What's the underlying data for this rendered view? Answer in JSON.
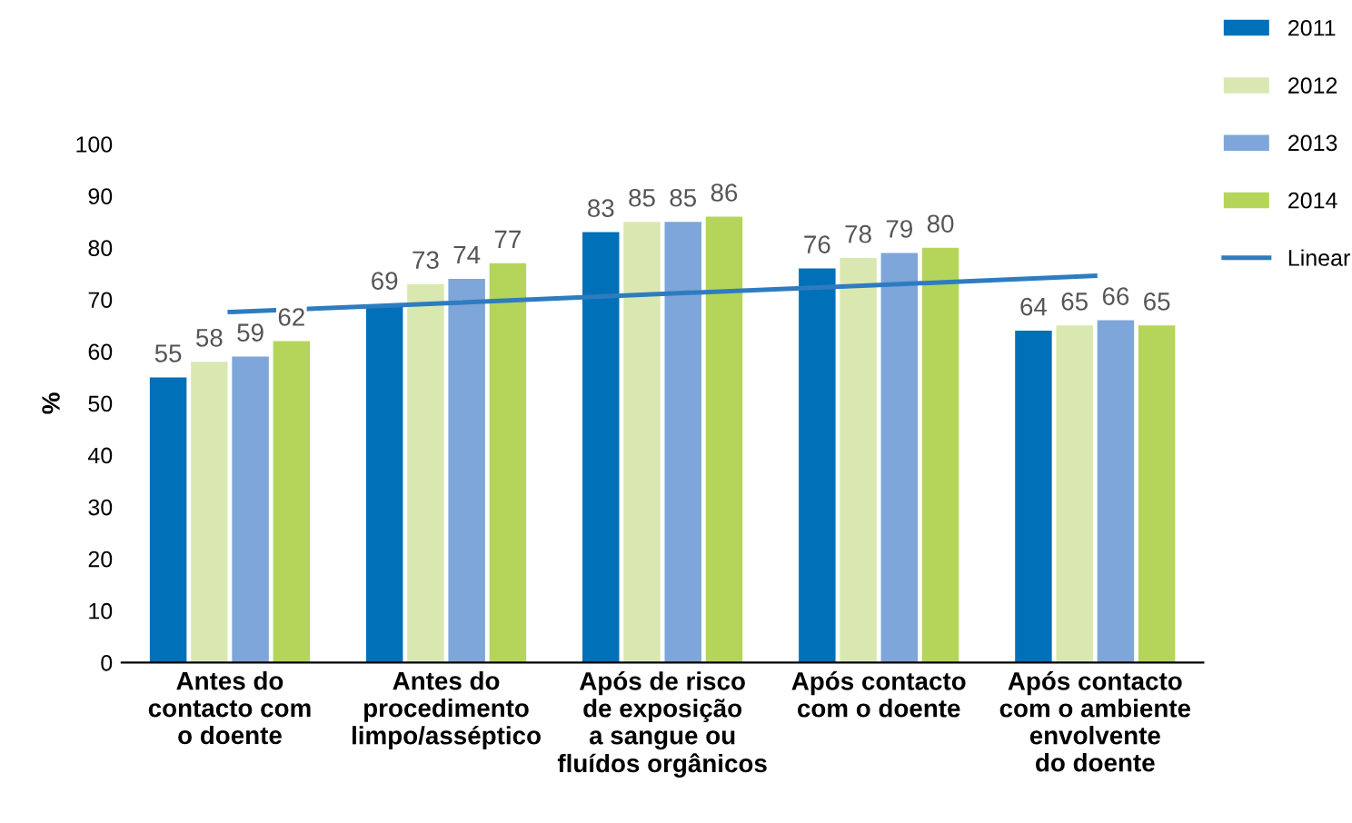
{
  "chart_data": {
    "type": "bar",
    "ylabel": "%",
    "categories": [
      "Antes do\ncontacto com\no doente",
      "Antes do\nprocedimento\nlimpo/asséptico",
      "Após de risco\nde exposição\na sangue ou\nfluídos orgânicos",
      "Após contacto\ncom o doente",
      "Após contacto\ncom o ambiente\nenvolvente\ndo doente"
    ],
    "series": [
      {
        "name": "2011",
        "color": "#0070b8",
        "values": [
          55,
          69,
          83,
          76,
          64
        ],
        "value_labels": [
          "55",
          "69",
          "83",
          "76",
          "64"
        ]
      },
      {
        "name": "2012",
        "color": "#d9e8b0",
        "values": [
          58,
          73,
          85,
          78,
          65
        ],
        "value_labels": [
          "58",
          "73",
          "85",
          "78",
          "65"
        ]
      },
      {
        "name": "2013",
        "color": "#7ea6d8",
        "values": [
          59,
          74,
          85,
          79,
          66
        ],
        "value_labels": [
          "59",
          "74",
          "85",
          "79",
          "66"
        ]
      },
      {
        "name": "2014",
        "color": "#b5d55a",
        "values": [
          62,
          77,
          86,
          80,
          65
        ],
        "value_labels": [
          "62",
          "77",
          "86",
          "80",
          "65"
        ]
      },
      {
        "name": "Linear",
        "type": "line",
        "color": "#2e7cc0",
        "values": [
          67.6,
          69.3,
          71.1,
          72.8,
          74.6
        ]
      }
    ],
    "ylim": [
      0,
      100
    ],
    "yticks": [
      0,
      10,
      20,
      30,
      40,
      50,
      60,
      70,
      80,
      90,
      100
    ],
    "grid": false,
    "legend": "right"
  }
}
